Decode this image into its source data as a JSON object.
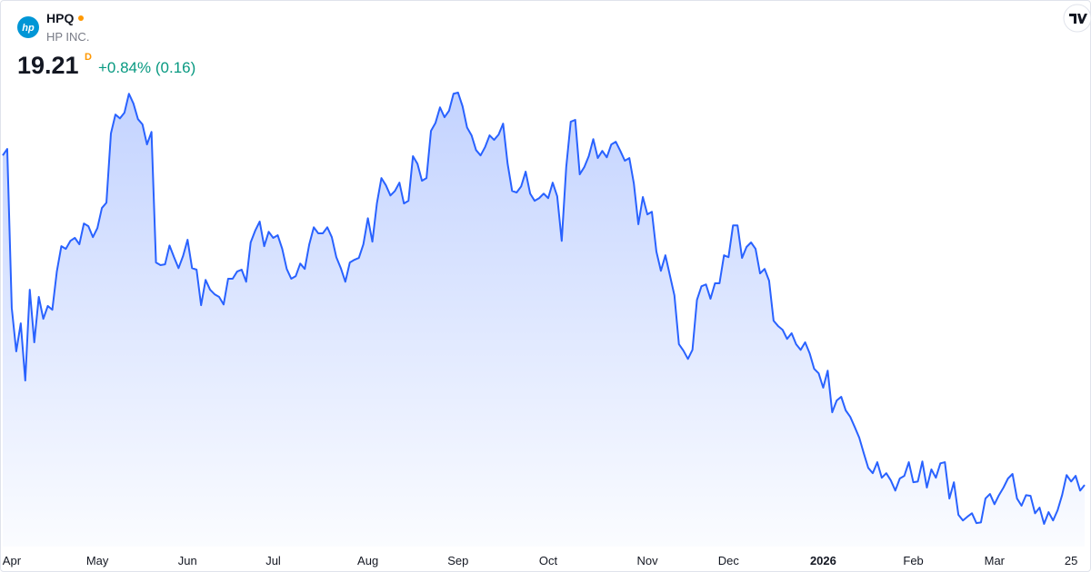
{
  "header": {
    "logo_text": "hp",
    "symbol": "HPQ",
    "company": "HP INC.",
    "price": 19.21,
    "interval": "D",
    "change": "+0.84% (0.16)"
  },
  "chart_data": {
    "type": "area",
    "color": "#2962ff",
    "values": [
      27.92,
      28.09,
      23.89,
      22.74,
      23.48,
      21.97,
      24.37,
      22.98,
      24.18,
      23.6,
      23.94,
      23.84,
      24.85,
      25.52,
      25.45,
      25.66,
      25.74,
      25.57,
      26.12,
      26.05,
      25.76,
      26.0,
      26.53,
      26.67,
      28.5,
      29.0,
      28.9,
      29.05,
      29.55,
      29.29,
      28.88,
      28.74,
      28.21,
      28.54,
      25.09,
      25.02,
      25.04,
      25.54,
      25.23,
      24.94,
      25.26,
      25.69,
      24.94,
      24.9,
      23.96,
      24.63,
      24.37,
      24.25,
      24.18,
      23.98,
      24.66,
      24.66,
      24.85,
      24.9,
      24.58,
      25.62,
      25.93,
      26.17,
      25.52,
      25.9,
      25.74,
      25.81,
      25.45,
      24.92,
      24.66,
      24.73,
      25.06,
      24.92,
      25.57,
      26.02,
      25.86,
      25.86,
      26.02,
      25.76,
      25.23,
      24.94,
      24.58,
      25.09,
      25.16,
      25.21,
      25.57,
      26.26,
      25.64,
      26.65,
      27.32,
      27.13,
      26.86,
      26.98,
      27.2,
      26.65,
      26.72,
      27.9,
      27.7,
      27.25,
      27.32,
      28.57,
      28.78,
      29.19,
      28.93,
      29.1,
      29.55,
      29.58,
      29.22,
      28.66,
      28.45,
      28.06,
      27.92,
      28.14,
      28.45,
      28.33,
      28.47,
      28.76,
      27.7,
      26.98,
      26.94,
      27.1,
      27.49,
      26.91,
      26.72,
      26.79,
      26.91,
      26.79,
      27.2,
      26.84,
      25.66,
      27.61,
      28.81,
      28.86,
      27.42,
      27.61,
      27.9,
      28.35,
      27.85,
      28.04,
      27.87,
      28.21,
      28.28,
      28.04,
      27.78,
      27.85,
      27.18,
      26.1,
      26.82,
      26.36,
      26.43,
      25.38,
      24.87,
      25.28,
      24.75,
      24.22,
      22.93,
      22.76,
      22.54,
      22.78,
      24.1,
      24.46,
      24.51,
      24.13,
      24.54,
      24.54,
      25.28,
      25.23,
      26.07,
      26.07,
      25.21,
      25.5,
      25.62,
      25.45,
      24.8,
      24.92,
      24.61,
      23.55,
      23.41,
      23.31,
      23.07,
      23.22,
      22.93,
      22.78,
      22.98,
      22.69,
      22.28,
      22.16,
      21.78,
      22.23,
      21.13,
      21.44,
      21.54,
      21.18,
      21.01,
      20.74,
      20.46,
      20.05,
      19.66,
      19.52,
      19.81,
      19.4,
      19.52,
      19.33,
      19.06,
      19.38,
      19.45,
      19.81,
      19.28,
      19.3,
      19.83,
      19.14,
      19.62,
      19.4,
      19.78,
      19.81,
      18.85,
      19.28,
      18.42,
      18.27,
      18.37,
      18.46,
      18.2,
      18.22,
      18.85,
      18.97,
      18.7,
      18.94,
      19.14,
      19.38,
      19.5,
      18.85,
      18.66,
      18.94,
      18.92,
      18.46,
      18.61,
      18.18,
      18.49,
      18.27,
      18.54,
      18.94,
      19.47,
      19.3,
      19.45,
      19.06,
      19.21
    ],
    "xticks": [
      {
        "value": 2,
        "label": "Apr"
      },
      {
        "value": 21,
        "label": "May"
      },
      {
        "value": 41,
        "label": "Jun"
      },
      {
        "value": 60,
        "label": "Jul"
      },
      {
        "value": 81,
        "label": "Aug"
      },
      {
        "value": 101,
        "label": "Sep"
      },
      {
        "value": 121,
        "label": "Oct"
      },
      {
        "value": 143,
        "label": "Nov"
      },
      {
        "value": 161,
        "label": "Dec"
      },
      {
        "value": 182,
        "label": "2026"
      },
      {
        "value": 202,
        "label": "Feb"
      },
      {
        "value": 220,
        "label": "Mar"
      },
      {
        "value": 237,
        "label": "25"
      }
    ]
  }
}
